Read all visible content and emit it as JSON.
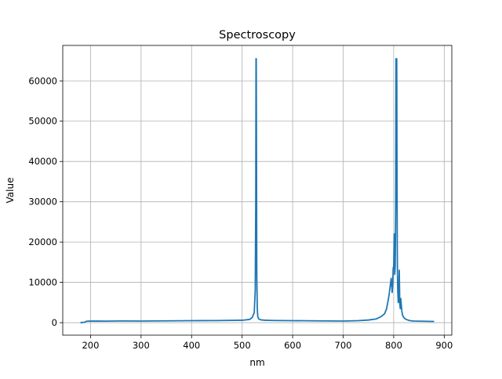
{
  "chart_data": {
    "type": "line",
    "title": "Spectroscopy",
    "xlabel": "nm",
    "ylabel": "Value",
    "xlim": [
      145,
      915
    ],
    "ylim": [
      -3100,
      68800
    ],
    "grid": true,
    "x_ticks": [
      200,
      300,
      400,
      500,
      600,
      700,
      800,
      900
    ],
    "y_ticks": [
      0,
      10000,
      20000,
      30000,
      40000,
      50000,
      60000
    ],
    "x_tick_labels": [
      "200",
      "300",
      "400",
      "500",
      "600",
      "700",
      "800",
      "900"
    ],
    "y_tick_labels": [
      "0",
      "10000",
      "20000",
      "30000",
      "40000",
      "50000",
      "60000"
    ],
    "series_color": "#1f77b4",
    "series": [
      {
        "x": [
          180,
          188,
          192,
          200,
          230,
          260,
          300,
          350,
          400,
          450,
          500,
          515,
          520,
          524,
          526,
          527,
          527.5,
          528,
          528.5,
          529,
          530,
          531,
          533,
          537,
          545,
          560,
          600,
          650,
          700,
          730,
          750,
          765,
          775,
          782,
          786,
          789,
          791,
          793,
          795,
          797,
          798,
          799,
          800,
          801,
          802,
          803,
          804,
          804.5,
          805,
          806,
          806.5,
          807,
          807.5,
          808,
          809,
          810,
          811,
          812,
          813,
          814,
          815,
          816,
          817,
          818,
          820,
          823,
          827,
          832,
          840,
          860,
          880
        ],
        "y": [
          0,
          100,
          350,
          400,
          380,
          420,
          400,
          450,
          500,
          520,
          600,
          800,
          1300,
          2500,
          8000,
          30000,
          65500,
          65500,
          40000,
          12000,
          3500,
          1500,
          900,
          700,
          600,
          550,
          500,
          450,
          400,
          500,
          650,
          900,
          1500,
          2200,
          3500,
          5500,
          7000,
          9000,
          11000,
          7500,
          9500,
          13500,
          14000,
          22000,
          12000,
          14000,
          30000,
          65500,
          65500,
          65500,
          40000,
          20000,
          12000,
          8000,
          5000,
          6000,
          13000,
          5000,
          3500,
          6000,
          4500,
          3000,
          2200,
          1700,
          1300,
          900,
          700,
          500,
          400,
          350,
          300
        ]
      }
    ]
  }
}
